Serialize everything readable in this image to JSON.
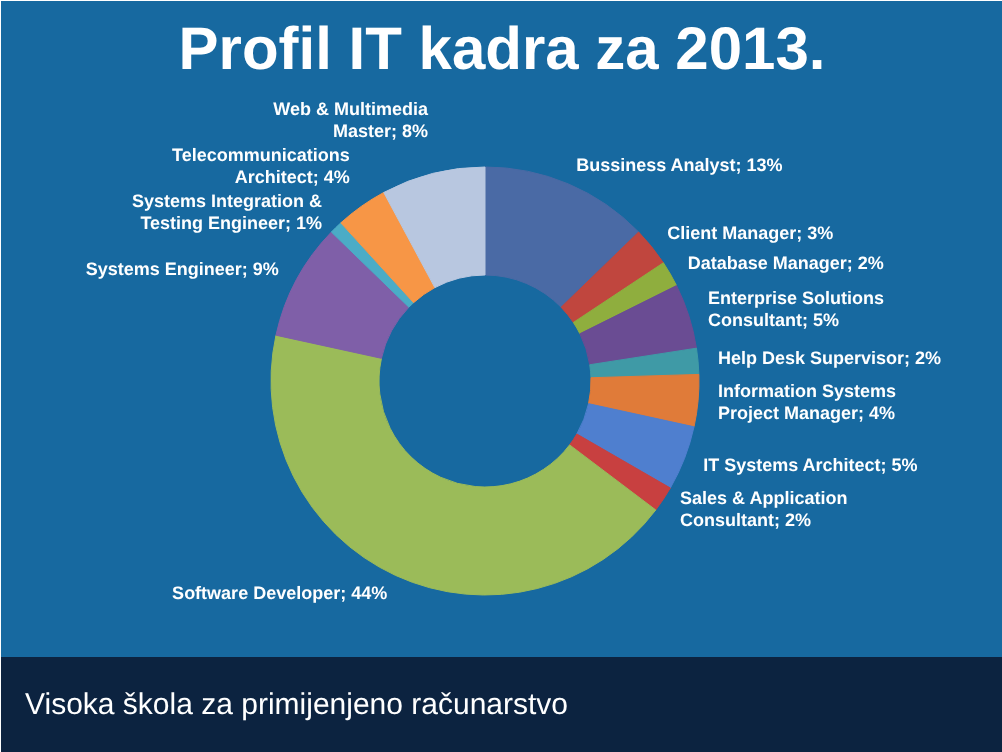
{
  "chart_data": {
    "type": "donut",
    "title": "Profil IT kadra za 2013.",
    "categories": [
      "Bussiness Analyst",
      "Client Manager",
      "Database Manager",
      "Enterprise Solutions Consultant",
      "Help Desk Supervisor",
      "Information Systems Project Manager",
      "IT Systems Architect",
      "Sales & Application Consultant",
      "Software Developer",
      "Systems Engineer",
      "Systems Integration & Testing Engineer",
      "Telecommunications Architect",
      "Web & Multimedia Master"
    ],
    "values": [
      13,
      3,
      2,
      5,
      2,
      4,
      5,
      2,
      44,
      9,
      1,
      4,
      8
    ],
    "value_labels": [
      "13%",
      "3%",
      "2%",
      "5%",
      "2%",
      "4%",
      "5%",
      "2%",
      "44%",
      "9%",
      "1%",
      "4%",
      "8%"
    ],
    "colors": [
      "#4a6aa5",
      "#c0463e",
      "#8fae3e",
      "#6a4c93",
      "#3f9aa6",
      "#e07b39",
      "#4f7fcf",
      "#c84040",
      "#9bbb59",
      "#7f5fa8",
      "#4bacc6",
      "#f79646",
      "#b8c7e0"
    ],
    "legend": false,
    "annotations": [
      "Visoka škola za primijenjeno računarstvo"
    ]
  }
}
